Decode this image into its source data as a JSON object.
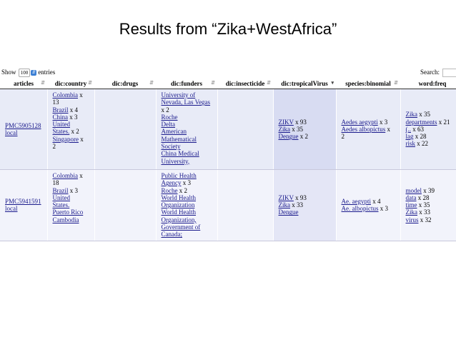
{
  "slide": {
    "title": "Results from “Zika+WestAfrica”"
  },
  "table_controls": {
    "show_label": "Show",
    "entries_value": "100",
    "entries_label": "entries",
    "search_label": "Search:"
  },
  "columns": [
    "articles",
    "dic:country",
    "dic:drugs",
    "dic:funders",
    "dic:insecticide",
    "dic:tropicalVirus",
    "species:binomial",
    "word:freq"
  ],
  "rows": [
    {
      "article": {
        "id": "PMC5905128",
        "local": "local"
      },
      "country": [
        {
          "link": "Colombia",
          "count": " x"
        },
        {
          "text": "13"
        },
        {
          "link": "Brazil",
          "count": " x 4"
        },
        {
          "link": "China",
          "count": " x 3"
        },
        {
          "link": "United"
        },
        {
          "link": "States.",
          "count": " x 2"
        },
        {
          "link": "Singapore",
          "count": " x"
        },
        {
          "text": "2"
        }
      ],
      "funders": [
        {
          "link": "University of"
        },
        {
          "link": "Nevada, Las Vegas"
        },
        {
          "text": "x 2"
        },
        {
          "link": "Roche"
        },
        {
          "link": "Delta"
        },
        {
          "link": "American"
        },
        {
          "link": "Mathematical"
        },
        {
          "link": "Society"
        },
        {
          "link": "China Medical"
        },
        {
          "link": "University,"
        }
      ],
      "tropical_virus": [
        {
          "link": "ZIKV",
          "count": " x 93"
        },
        {
          "link": "Zika",
          "count": " x 35"
        },
        {
          "link": "Dengue",
          "count": " x 2"
        }
      ],
      "species": [
        {
          "link": "Aedes aegypti",
          "count": " x 3"
        },
        {
          "link": "Aedes albopictus",
          "count": " x"
        },
        {
          "text": "2"
        }
      ],
      "word_freq": [
        {
          "link": "Zika",
          "count": " x 35"
        },
        {
          "link": "departments",
          "count": " x 21"
        },
        {
          "link": "(..",
          "count": " x 63"
        },
        {
          "link": "lag",
          "count": " x 28"
        },
        {
          "link": "risk",
          "count": " x 22"
        }
      ]
    },
    {
      "article": {
        "id": "PMC5941591",
        "local": "local"
      },
      "country": [
        {
          "link": "Colombia",
          "count": " x"
        },
        {
          "text": "18"
        },
        {
          "link": "Brazil",
          "count": " x 3"
        },
        {
          "link": "United"
        },
        {
          "link": "States."
        },
        {
          "link": "Puerto Rico"
        },
        {
          "link": "Cambodia"
        }
      ],
      "funders": [
        {
          "link": "Public Health"
        },
        {
          "link": "Agency",
          "count": " x 3"
        },
        {
          "link": "Roche",
          "count": " x 2"
        },
        {
          "link": "World Health"
        },
        {
          "link": "Organization"
        },
        {
          "link": "World Health"
        },
        {
          "link": "Organization,"
        },
        {
          "link": "Government of"
        },
        {
          "link": "Canada;"
        }
      ],
      "tropical_virus": [
        {
          "link": "ZIKV",
          "count": " x 93"
        },
        {
          "link": "Zika",
          "count": " x 33"
        },
        {
          "link": "Dengue"
        }
      ],
      "species": [
        {
          "link": "Ae. aegypti",
          "count": " x 4"
        },
        {
          "link": "Ae. albopictus",
          "count": " x 3"
        }
      ],
      "word_freq": [
        {
          "link": "model",
          "count": " x 39"
        },
        {
          "link": "data",
          "count": " x 28"
        },
        {
          "link": "time",
          "count": " x 35"
        },
        {
          "link": "Zika",
          "count": " x 33"
        },
        {
          "link": "virus",
          "count": " x 32"
        }
      ]
    }
  ],
  "colors": {
    "link": "#1a1a8c",
    "row_a": "#e8ebf7",
    "row_b": "#f2f3fb",
    "sorted_col": "#d8dcf2",
    "select_arrow": "#3b7fd4"
  },
  "icons": {
    "sort": "sort-arrows-icon",
    "sort_active": "sort-down-icon",
    "select": "select-arrow-icon"
  }
}
